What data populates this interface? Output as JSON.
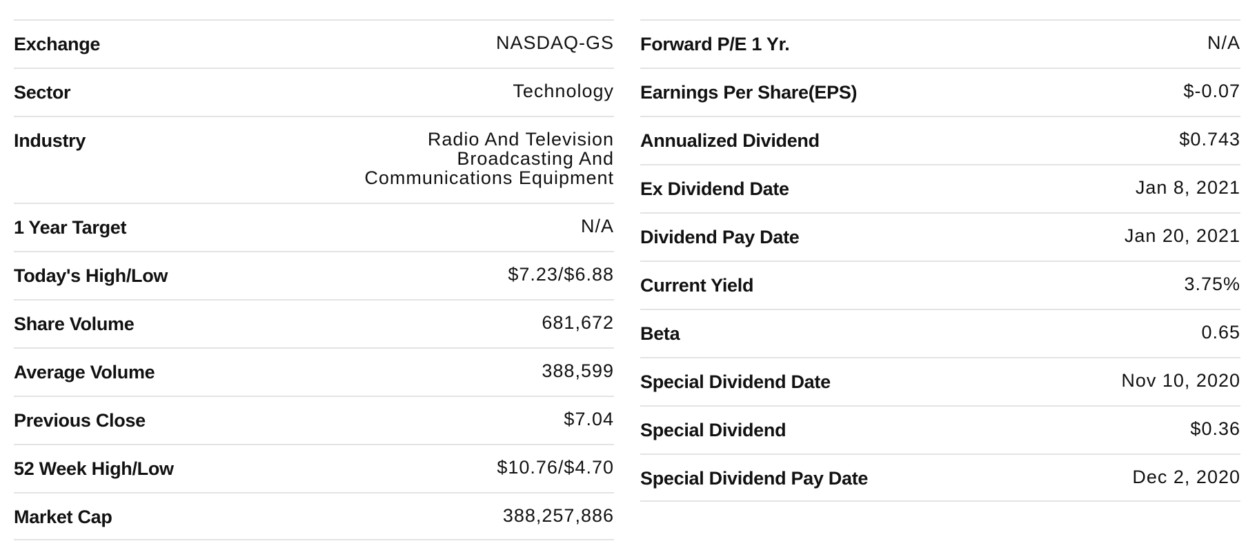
{
  "left_table": [
    {
      "label": "Exchange",
      "value": "NASDAQ-GS"
    },
    {
      "label": "Sector",
      "value": "Technology"
    },
    {
      "label": "Industry",
      "value": "Radio And Television\nBroadcasting And\nCommunications Equipment"
    },
    {
      "label": "1 Year Target",
      "value": "N/A"
    },
    {
      "label": "Today's High/Low",
      "value": "$7.23/$6.88"
    },
    {
      "label": "Share Volume",
      "value": "681,672"
    },
    {
      "label": "Average Volume",
      "value": "388,599"
    },
    {
      "label": "Previous Close",
      "value": "$7.04"
    },
    {
      "label": "52 Week High/Low",
      "value": "$10.76/$4.70"
    },
    {
      "label": "Market Cap",
      "value": "388,257,886"
    }
  ],
  "right_table": [
    {
      "label": "Forward P/E 1 Yr.",
      "value": "N/A"
    },
    {
      "label": "Earnings Per Share(EPS)",
      "value": "$-0.07"
    },
    {
      "label": "Annualized Dividend",
      "value": "$0.743"
    },
    {
      "label": "Ex Dividend Date",
      "value": "Jan 8, 2021"
    },
    {
      "label": "Dividend Pay Date",
      "value": "Jan 20, 2021"
    },
    {
      "label": "Current Yield",
      "value": "3.75%"
    },
    {
      "label": "Beta",
      "value": "0.65"
    },
    {
      "label": "Special Dividend Date",
      "value": "Nov 10, 2020"
    },
    {
      "label": "Special Dividend",
      "value": "$0.36"
    },
    {
      "label": "Special Dividend Pay Date",
      "value": "Dec 2, 2020"
    }
  ]
}
